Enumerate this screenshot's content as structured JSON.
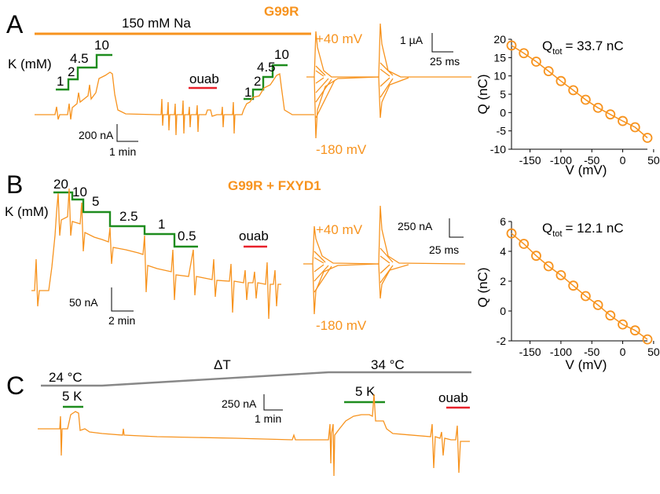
{
  "colors": {
    "trace": "#f7931e",
    "potassium_bar": "#1e8c1e",
    "ouabain_bar": "#e8202a",
    "temperature_bar": "#888888",
    "axis": "#000000"
  },
  "panels": {
    "A": {
      "letter": "A",
      "condition": "150 mM Na",
      "construct": "G99R",
      "k_label": "K (mM)",
      "k_steps_left": [
        "1",
        "2",
        "4.5",
        "10"
      ],
      "k_steps_right": [
        "1",
        "2",
        "4.5",
        "10"
      ],
      "ouabain": "ouab",
      "scale_current": "200 nA",
      "scale_time": "1 min",
      "v_top": "+40 mV",
      "v_bottom": "-180 mV",
      "scale2_current": "1 µA",
      "scale2_time": "25 ms"
    },
    "B": {
      "letter": "B",
      "construct": "G99R + FXYD1",
      "k_label": "K (mM)",
      "k_steps": [
        "20",
        "10",
        "5",
        "2.5",
        "1",
        "0.5"
      ],
      "ouabain": "ouab",
      "scale_current": "50 nA",
      "scale_time": "2 min",
      "v_top": "+40 mV",
      "v_bottom": "-180 mV",
      "scale2_current": "250 nA",
      "scale2_time": "25 ms"
    },
    "C": {
      "letter": "C",
      "temp_start": "24 °C",
      "temp_change": "ΔT",
      "temp_end": "34 °C",
      "k_pulse_1": "5 K",
      "k_pulse_2": "5 K",
      "ouabain": "ouab",
      "scale_current": "250 nA",
      "scale_time": "1 min"
    }
  },
  "chart_data": [
    {
      "type": "scatter",
      "panel": "A",
      "annotation_prefix": "Q",
      "annotation_sub": "tot",
      "annotation_value": "= 33.7 nC",
      "xlabel": "V (mV)",
      "ylabel": "Q (nC)",
      "xlim": [
        -180,
        40
      ],
      "ylim": [
        -10,
        20
      ],
      "xticks": [
        -150,
        -100,
        -50,
        0,
        50
      ],
      "xtick_labels": [
        "-150",
        "-100",
        "-50",
        "0",
        "50"
      ],
      "yticks": [
        -10,
        -5,
        0,
        5,
        10,
        15,
        20
      ],
      "ytick_labels": [
        "-10",
        "-5",
        "0",
        "5",
        "10",
        "15",
        "20"
      ],
      "x": [
        -180,
        -160,
        -140,
        -120,
        -100,
        -80,
        -60,
        -40,
        -20,
        0,
        20,
        40
      ],
      "y": [
        18.3,
        16.2,
        13.9,
        11.3,
        8.6,
        6.1,
        3.5,
        1.3,
        -0.5,
        -2.3,
        -4.0,
        -6.9
      ]
    },
    {
      "type": "scatter",
      "panel": "B",
      "annotation_prefix": "Q",
      "annotation_sub": "tot",
      "annotation_value": "= 12.1 nC",
      "xlabel": "V (mV)",
      "ylabel": "Q (nC)",
      "xlim": [
        -180,
        40
      ],
      "ylim": [
        -2,
        6
      ],
      "xticks": [
        -150,
        -100,
        -50,
        0,
        50
      ],
      "xtick_labels": [
        "-150",
        "-100",
        "-50",
        "0",
        "50"
      ],
      "yticks": [
        -2,
        0,
        2,
        4,
        6
      ],
      "ytick_labels": [
        "-2",
        "0",
        "2",
        "4",
        "6"
      ],
      "x": [
        -180,
        -160,
        -140,
        -120,
        -100,
        -80,
        -60,
        -40,
        -20,
        0,
        20,
        40
      ],
      "y": [
        5.2,
        4.5,
        3.7,
        3.0,
        2.4,
        1.7,
        1.0,
        0.4,
        -0.3,
        -0.9,
        -1.3,
        -1.9
      ]
    }
  ]
}
